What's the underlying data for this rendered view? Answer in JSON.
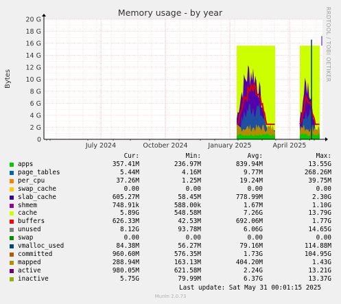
{
  "chart_data": {
    "type": "area",
    "title": "Memory usage - by year",
    "ylabel": "Bytes",
    "yticks": [
      "0",
      "2 G",
      "4 G",
      "6 G",
      "8 G",
      "10 G",
      "12 G",
      "14 G",
      "16 G",
      "18 G",
      "20 G"
    ],
    "ylim": [
      0,
      20
    ],
    "xticks": [
      "July 2024",
      "October 2024",
      "January 2025",
      "April 2025"
    ],
    "grid": true,
    "legend_placement": "below",
    "legend_headers": [
      "Cur:",
      "Min:",
      "Avg:",
      "Max:"
    ],
    "series": [
      {
        "name": "apps",
        "color": "#00cc00",
        "cur": "357.41M",
        "min": "236.97M",
        "avg": "839.94M",
        "max": "13.55G"
      },
      {
        "name": "page_tables",
        "color": "#0066b3",
        "cur": "5.44M",
        "min": "4.16M",
        "avg": "9.77M",
        "max": "268.26M"
      },
      {
        "name": "per_cpu",
        "color": "#ff8000",
        "cur": "37.26M",
        "min": "1.25M",
        "avg": "19.24M",
        "max": "39.75M"
      },
      {
        "name": "swap_cache",
        "color": "#ffcc00",
        "cur": "0.00",
        "min": "0.00",
        "avg": "0.00",
        "max": "0.00"
      },
      {
        "name": "slab_cache",
        "color": "#330099",
        "cur": "605.27M",
        "min": "58.45M",
        "avg": "778.99M",
        "max": "2.30G"
      },
      {
        "name": "shmem",
        "color": "#990099",
        "cur": "748.91k",
        "min": "588.00k",
        "avg": "1.67M",
        "max": "1.10G"
      },
      {
        "name": "cache",
        "color": "#ccff00",
        "cur": "5.89G",
        "min": "548.58M",
        "avg": "7.26G",
        "max": "13.79G"
      },
      {
        "name": "buffers",
        "color": "#ff0000",
        "cur": "626.33M",
        "min": "42.53M",
        "avg": "692.06M",
        "max": "1.77G"
      },
      {
        "name": "unused",
        "color": "#808080",
        "cur": "8.12G",
        "min": "93.78M",
        "avg": "6.06G",
        "max": "14.65G"
      },
      {
        "name": "swap",
        "color": "#008f00",
        "cur": "0.00",
        "min": "0.00",
        "avg": "0.00",
        "max": "0.00"
      },
      {
        "name": "vmalloc_used",
        "color": "#00487d",
        "cur": "84.38M",
        "min": "56.27M",
        "avg": "79.16M",
        "max": "114.88M"
      },
      {
        "name": "committed",
        "color": "#b35a00",
        "cur": "960.60M",
        "min": "576.35M",
        "avg": "1.73G",
        "max": "104.95G"
      },
      {
        "name": "mapped",
        "color": "#b38f00",
        "cur": "288.94M",
        "min": "163.13M",
        "avg": "404.20M",
        "max": "1.43G"
      },
      {
        "name": "active",
        "color": "#6b006b",
        "cur": "980.05M",
        "min": "621.58M",
        "avg": "2.24G",
        "max": "13.21G"
      },
      {
        "name": "inactive",
        "color": "#8fb300",
        "cur": "5.75G",
        "min": "79.99M",
        "avg": "6.37G",
        "max": "13.37G"
      }
    ]
  },
  "side_label": "RRDTOOL / TOBI OETIKER",
  "last_update": "Last update: Sat May 31 00:01:15 2025",
  "footer": "Munin 2.0.73"
}
